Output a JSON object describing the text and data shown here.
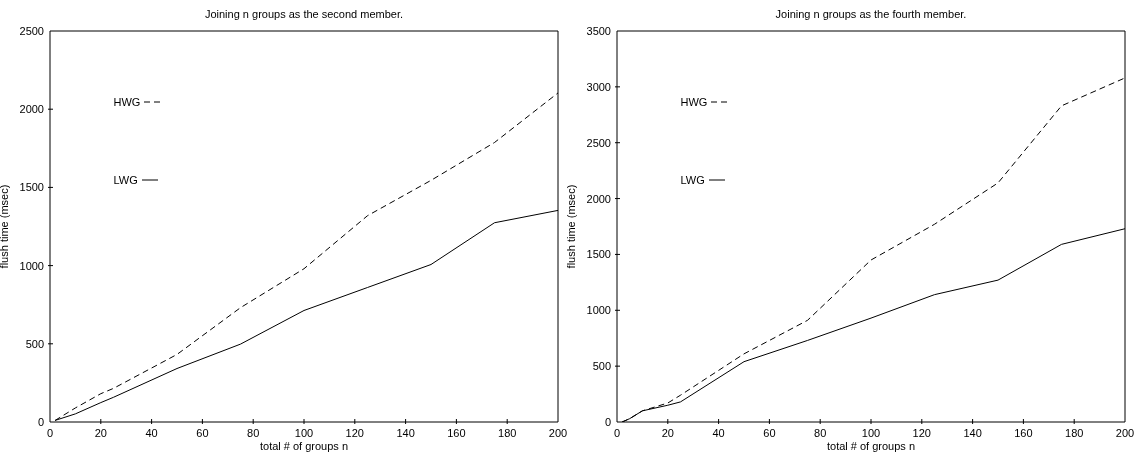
{
  "chart_data": [
    {
      "type": "line",
      "title": "Joining n groups as the second member.",
      "xlabel": "total # of groups n",
      "ylabel": "flush time (msec)",
      "xlim": [
        0,
        200
      ],
      "xticks": [
        0,
        20,
        40,
        60,
        80,
        100,
        120,
        140,
        160,
        180,
        200
      ],
      "ylim": [
        0,
        2500
      ],
      "yticks": [
        0,
        500,
        1000,
        1500,
        2000,
        2500
      ],
      "grid": false,
      "legend": "top left",
      "marker": "none",
      "series": [
        {
          "name": "HWG",
          "color": "#000000",
          "line_style": "dashed",
          "x": [
            2,
            10,
            20,
            25,
            50,
            75,
            100,
            125,
            150,
            175,
            200
          ],
          "values": [
            10,
            90,
            181,
            215,
            432,
            731,
            980,
            1319,
            1545,
            1787,
            2104
          ]
        },
        {
          "name": "LWG",
          "color": "#000000",
          "line_style": "solid",
          "x": [
            2,
            10,
            20,
            25,
            50,
            75,
            100,
            125,
            150,
            175,
            200
          ],
          "values": [
            10,
            52,
            124,
            158,
            342,
            498,
            713,
            860,
            1007,
            1274,
            1353
          ]
        }
      ]
    },
    {
      "type": "line",
      "title": "Joining n groups as the fourth member.",
      "xlabel": "total # of groups n",
      "ylabel": "flush time (msec)",
      "xlim": [
        0,
        200
      ],
      "xticks": [
        0,
        20,
        40,
        60,
        80,
        100,
        120,
        140,
        160,
        180,
        200
      ],
      "ylim": [
        0,
        3500
      ],
      "yticks": [
        0,
        500,
        1000,
        1500,
        2000,
        2500,
        3000,
        3500
      ],
      "grid": false,
      "legend": "top left",
      "marker": "none",
      "series": [
        {
          "name": "HWG",
          "color": "#000000",
          "line_style": "dashed",
          "x": [
            2,
            5,
            10,
            20,
            25,
            50,
            75,
            100,
            125,
            150,
            175,
            200
          ],
          "values": [
            0,
            30,
            100,
            170,
            240,
            610,
            910,
            1450,
            1770,
            2140,
            2830,
            3080
          ]
        },
        {
          "name": "LWG",
          "color": "#000000",
          "line_style": "solid",
          "x": [
            2,
            5,
            10,
            20,
            25,
            50,
            75,
            100,
            125,
            150,
            175,
            200
          ],
          "values": [
            0,
            30,
            100,
            150,
            180,
            540,
            730,
            930,
            1140,
            1270,
            1590,
            1730
          ]
        }
      ]
    }
  ]
}
